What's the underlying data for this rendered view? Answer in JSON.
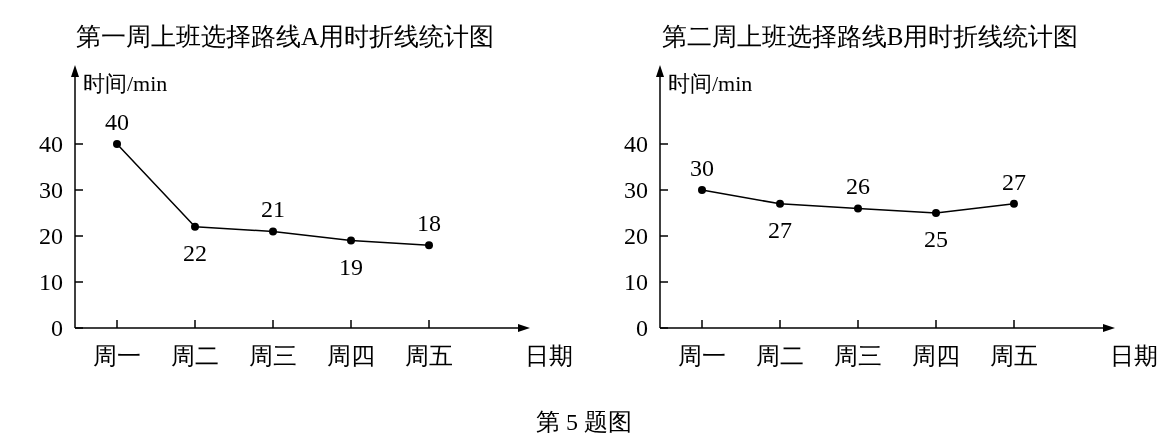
{
  "chart_data": [
    {
      "type": "line",
      "title": "第一周上班选择路线A用时折线统计图",
      "ylabel": "时间/min",
      "xlabel": "日期",
      "categories": [
        "周一",
        "周二",
        "周三",
        "周四",
        "周五"
      ],
      "series": [
        {
          "color": "#000000",
          "values": [
            40,
            22,
            21,
            19,
            18
          ]
        }
      ],
      "ylim": [
        0,
        55
      ],
      "yticks": [
        0,
        10,
        20,
        30,
        40
      ],
      "data_labels": true,
      "marker": "circle",
      "line_style": "solid"
    },
    {
      "type": "line",
      "title": "第二周上班选择路线B用时折线统计图",
      "ylabel": "时间/min",
      "xlabel": "日期",
      "categories": [
        "周一",
        "周二",
        "周三",
        "周四",
        "周五"
      ],
      "series": [
        {
          "color": "#000000",
          "values": [
            30,
            27,
            26,
            25,
            27
          ]
        }
      ],
      "ylim": [
        0,
        55
      ],
      "yticks": [
        0,
        10,
        20,
        30,
        40
      ],
      "data_labels": true,
      "marker": "circle",
      "line_style": "solid",
      "annotations": [
        "第 5 题图"
      ]
    }
  ]
}
